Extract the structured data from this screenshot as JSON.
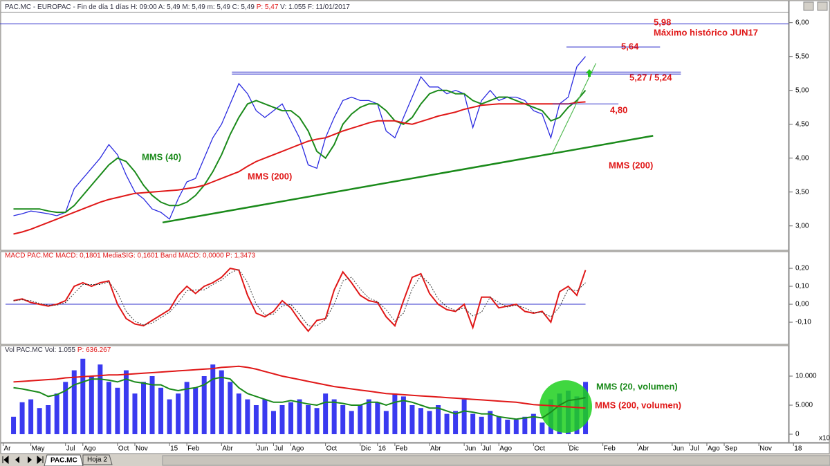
{
  "chart_data": [
    {
      "type": "line",
      "title": "PAC.MC - EUROPAC - Fin de día 1 días H: 09:00 A: 5,49 M: 5,49 m: 5,49 C: 5,49",
      "title_highlight": "P: 5,47",
      "title_tail": "V: 1.055 F: 11/01/2017",
      "x": [
        0,
        0.5,
        1,
        1.5,
        2,
        2.5,
        3,
        3.5,
        4,
        4.5,
        5,
        5.5,
        6,
        6.5,
        7,
        7.5,
        8,
        8.5,
        9,
        9.5,
        10,
        10.5,
        11,
        11.5,
        12,
        12.5,
        13,
        13.5,
        14,
        14.5,
        15,
        15.5,
        16,
        16.5,
        17,
        17.5,
        18,
        18.5,
        19,
        19.5,
        20,
        20.5,
        21,
        21.5,
        22,
        22.5,
        23,
        23.5,
        24,
        24.5,
        25,
        25.5,
        26,
        26.5,
        27,
        27.5,
        28,
        28.5,
        29,
        29.5,
        30,
        30.5,
        31,
        31.5,
        32,
        32.5,
        33
      ],
      "series": [
        {
          "color": "#2a2ae0",
          "values": [
            3.15,
            3.18,
            3.22,
            3.2,
            3.18,
            3.15,
            3.2,
            3.55,
            3.7,
            3.85,
            4.0,
            4.2,
            4.05,
            3.75,
            3.5,
            3.4,
            3.25,
            3.2,
            3.1,
            3.4,
            3.65,
            3.7,
            4.0,
            4.3,
            4.5,
            4.8,
            5.1,
            4.95,
            4.7,
            4.6,
            4.7,
            4.8,
            4.55,
            4.3,
            3.9,
            3.85,
            4.3,
            4.6,
            4.85,
            4.9,
            4.85,
            4.85,
            4.8,
            4.4,
            4.3,
            4.6,
            4.9,
            5.2,
            5.05,
            5.05,
            4.95,
            5.0,
            4.95,
            4.45,
            4.85,
            5.0,
            4.85,
            4.9,
            4.9,
            4.85,
            4.7,
            4.65,
            4.3,
            4.8,
            4.9,
            5.35,
            5.5
          ]
        },
        {
          "name": "MMS (40)",
          "color": "#1a8a1a",
          "values": [
            3.25,
            3.25,
            3.25,
            3.25,
            3.22,
            3.2,
            3.2,
            3.3,
            3.45,
            3.6,
            3.75,
            3.9,
            4.0,
            3.95,
            3.8,
            3.6,
            3.45,
            3.35,
            3.3,
            3.3,
            3.35,
            3.45,
            3.6,
            3.8,
            4.05,
            4.35,
            4.6,
            4.8,
            4.85,
            4.8,
            4.75,
            4.7,
            4.7,
            4.6,
            4.4,
            4.1,
            4.0,
            4.2,
            4.5,
            4.65,
            4.75,
            4.8,
            4.8,
            4.7,
            4.55,
            4.5,
            4.6,
            4.8,
            4.95,
            5.0,
            5.0,
            4.95,
            4.95,
            4.85,
            4.8,
            4.85,
            4.9,
            4.9,
            4.85,
            4.8,
            4.75,
            4.7,
            4.55,
            4.6,
            4.75,
            4.85,
            5.0
          ]
        },
        {
          "name": "MMS (200)",
          "color": "#e01818",
          "values": [
            2.88,
            2.91,
            2.95,
            3.0,
            3.05,
            3.1,
            3.15,
            3.2,
            3.25,
            3.3,
            3.35,
            3.39,
            3.42,
            3.45,
            3.48,
            3.49,
            3.5,
            3.51,
            3.52,
            3.53,
            3.55,
            3.57,
            3.6,
            3.65,
            3.7,
            3.75,
            3.8,
            3.88,
            3.95,
            4.0,
            4.05,
            4.1,
            4.15,
            4.2,
            4.25,
            4.28,
            4.3,
            4.35,
            4.4,
            4.44,
            4.48,
            4.52,
            4.55,
            4.55,
            4.55,
            4.52,
            4.5,
            4.54,
            4.58,
            4.62,
            4.65,
            4.68,
            4.72,
            4.75,
            4.78,
            4.79,
            4.8,
            4.8,
            4.8,
            4.8,
            4.8,
            4.8,
            4.8,
            4.8,
            4.8,
            4.82,
            4.83
          ]
        }
      ],
      "levels": [
        {
          "values": [
            5.98
          ],
          "x": [
            -0.78,
            44.71
          ],
          "label": "5,98",
          "note": "Máximo histórico JUN17"
        },
        {
          "values": [
            5.64
          ],
          "x": [
            31.9,
            37.3
          ],
          "label": "5,64"
        },
        {
          "values": [
            5.27,
            5.24
          ],
          "x": [
            12.6,
            38.5
          ],
          "label": "5,27 / 5,24"
        },
        {
          "values": [
            4.8
          ],
          "x": [
            31.1,
            34.9
          ],
          "label": "4,80"
        }
      ],
      "level_color": "#3333cc",
      "label_color": "#e01818",
      "trendlines": [
        {
          "x": [
            8.6,
            36.9
          ],
          "values": [
            3.05,
            4.33
          ],
          "color": "#1a8a1a"
        },
        {
          "x": [
            31.1,
            33.6
          ],
          "values": [
            4.08,
            5.4
          ],
          "color": "#55bb55"
        }
      ],
      "ylim": [
        2.64,
        6.15
      ],
      "yticks": [
        {
          "value": 3,
          "label": "3,00"
        },
        {
          "value": 3.5,
          "label": "3,50"
        },
        {
          "value": 4,
          "label": "4,00"
        },
        {
          "value": 4.5,
          "label": "4,50"
        },
        {
          "value": 5,
          "label": "5,00"
        },
        {
          "value": 5.5,
          "label": "5,50"
        },
        {
          "value": 6,
          "label": "6,00"
        }
      ]
    },
    {
      "type": "line",
      "title": "MACD  PAC.MC MACD: 0,1801 MediaSIG: 0,1601 Band MACD: 0,0000 P: 1,3473",
      "x": [
        0,
        0.5,
        1,
        1.5,
        2,
        2.5,
        3,
        3.5,
        4,
        4.5,
        5,
        5.5,
        6,
        6.5,
        7,
        7.5,
        8,
        8.5,
        9,
        9.5,
        10,
        10.5,
        11,
        11.5,
        12,
        12.5,
        13,
        13.5,
        14,
        14.5,
        15,
        15.5,
        16,
        16.5,
        17,
        17.5,
        18,
        18.5,
        19,
        19.5,
        20,
        20.5,
        21,
        21.5,
        22,
        22.5,
        23,
        23.5,
        24,
        24.5,
        25,
        25.5,
        26,
        26.5,
        27,
        27.5,
        28,
        28.5,
        29,
        29.5,
        30,
        30.5,
        31,
        31.5,
        32,
        32.5,
        33
      ],
      "series": [
        {
          "color": "#e01818",
          "values": [
            0.02,
            0.03,
            0.01,
            0.0,
            -0.01,
            0.0,
            0.02,
            0.1,
            0.12,
            0.1,
            0.12,
            0.13,
            0.0,
            -0.08,
            -0.11,
            -0.12,
            -0.09,
            -0.06,
            -0.03,
            0.05,
            0.1,
            0.06,
            0.1,
            0.12,
            0.15,
            0.2,
            0.19,
            0.05,
            -0.05,
            -0.07,
            -0.04,
            0.02,
            -0.02,
            -0.09,
            -0.15,
            -0.09,
            -0.08,
            0.08,
            0.18,
            0.12,
            0.05,
            0.02,
            0.01,
            -0.07,
            -0.12,
            0.02,
            0.15,
            0.17,
            0.06,
            0.0,
            -0.03,
            -0.04,
            0.0,
            -0.13,
            0.04,
            0.04,
            -0.02,
            -0.01,
            0.0,
            -0.04,
            -0.05,
            -0.04,
            -0.1,
            0.07,
            0.1,
            0.05,
            0.19
          ]
        },
        {
          "color": "#333333",
          "dashed": true,
          "values": [
            0.02,
            0.025,
            0.02,
            0.005,
            -0.005,
            -0.005,
            0.01,
            0.06,
            0.11,
            0.11,
            0.11,
            0.125,
            0.065,
            -0.04,
            -0.095,
            -0.115,
            -0.105,
            -0.075,
            -0.045,
            0.01,
            0.075,
            0.08,
            0.08,
            0.11,
            0.135,
            0.175,
            0.195,
            0.12,
            0.0,
            -0.06,
            -0.055,
            -0.01,
            0.0,
            -0.055,
            -0.12,
            -0.12,
            -0.085,
            0.0,
            0.13,
            0.15,
            0.085,
            0.035,
            0.015,
            -0.03,
            -0.095,
            -0.05,
            0.085,
            0.16,
            0.115,
            0.03,
            -0.015,
            -0.035,
            -0.02,
            -0.065,
            -0.045,
            0.04,
            0.01,
            -0.015,
            -0.005,
            -0.02,
            -0.045,
            -0.045,
            -0.07,
            -0.015,
            0.085,
            0.075,
            0.12
          ]
        }
      ],
      "zero_line": true,
      "zero_color": "#3333cc",
      "ylim": [
        -0.223,
        0.285
      ],
      "yticks": [
        {
          "value": -0.1,
          "label": "-0,10"
        },
        {
          "value": 0,
          "label": "0,00"
        },
        {
          "value": 0.1,
          "label": "0,10"
        },
        {
          "value": 0.2,
          "label": "0,20"
        }
      ]
    },
    {
      "type": "bar",
      "title": "Vol  PAC.MC Vol: 1.055",
      "title_highlight": "P: 636.267",
      "x": [
        0,
        0.5,
        1,
        1.5,
        2,
        2.5,
        3,
        3.5,
        4,
        4.5,
        5,
        5.5,
        6,
        6.5,
        7,
        7.5,
        8,
        8.5,
        9,
        9.5,
        10,
        10.5,
        11,
        11.5,
        12,
        12.5,
        13,
        13.5,
        14,
        14.5,
        15,
        15.5,
        16,
        16.5,
        17,
        17.5,
        18,
        18.5,
        19,
        19.5,
        20,
        20.5,
        21,
        21.5,
        22,
        22.5,
        23,
        23.5,
        24,
        24.5,
        25,
        25.5,
        26,
        26.5,
        27,
        27.5,
        28,
        28.5,
        29,
        29.5,
        30,
        30.5,
        31,
        31.5,
        32,
        32.5,
        33
      ],
      "color": "#3a3af0",
      "values": [
        3000,
        5500,
        6000,
        4500,
        5000,
        7000,
        9000,
        11000,
        13000,
        10000,
        12000,
        9000,
        8000,
        11000,
        7000,
        9000,
        10000,
        8000,
        6000,
        7000,
        9000,
        8000,
        10000,
        12000,
        11000,
        9000,
        7000,
        6000,
        5000,
        6000,
        4000,
        5000,
        5500,
        6000,
        5000,
        4500,
        7000,
        6000,
        5000,
        4000,
        5000,
        6000,
        5500,
        4000,
        7000,
        6500,
        5000,
        4500,
        4000,
        5000,
        3500,
        4000,
        6000,
        3500,
        3000,
        4000,
        3000,
        2500,
        2500,
        3000,
        3500,
        2000,
        6000,
        7000,
        7500,
        6500,
        9000
      ],
      "series": [
        {
          "name": "MMS (20, volumen)",
          "color": "#1a8a1a",
          "values": [
            8000,
            7800,
            7500,
            7200,
            6500,
            6800,
            7500,
            8500,
            9000,
            9500,
            9500,
            9300,
            9000,
            9500,
            9000,
            8800,
            8500,
            8500,
            7800,
            7500,
            7800,
            8000,
            8500,
            9500,
            9800,
            9500,
            8000,
            7000,
            6500,
            6000,
            5500,
            5500,
            5800,
            5500,
            5200,
            5000,
            5500,
            5500,
            5300,
            5000,
            5000,
            5500,
            5500,
            5000,
            5500,
            5800,
            5500,
            5000,
            4500,
            4500,
            4000,
            3500,
            4000,
            3800,
            3500,
            3500,
            3000,
            2800,
            2600,
            2800,
            3000,
            2800,
            3800,
            5000,
            5800,
            6000,
            6300
          ]
        },
        {
          "name": "MMS (200, volumen)",
          "color": "#e01818",
          "values": [
            9000,
            9100,
            9200,
            9300,
            9400,
            9500,
            9700,
            9800,
            9900,
            10000,
            10100,
            10200,
            10200,
            10300,
            10400,
            10500,
            10600,
            10700,
            10800,
            10900,
            11000,
            11100,
            11200,
            11300,
            11500,
            11600,
            11700,
            11500,
            11200,
            10800,
            10400,
            10000,
            9700,
            9400,
            9100,
            8800,
            8500,
            8200,
            8000,
            7800,
            7600,
            7400,
            7200,
            7000,
            6900,
            6800,
            6700,
            6600,
            6500,
            6400,
            6300,
            6200,
            6100,
            6000,
            5900,
            5800,
            5700,
            5600,
            5500,
            5300,
            5100,
            5000,
            4900,
            4800,
            4700,
            4600,
            4500
          ]
        }
      ],
      "ylim": [
        -1430,
        15000
      ],
      "yticks": [
        0,
        {
          "value": 5000,
          "label": "5.000"
        },
        {
          "value": 10000,
          "label": "10.000"
        }
      ]
    }
  ],
  "x_axis": {
    "xlim": [
      -0.78,
      44.71
    ],
    "xticks": [
      {
        "value": -0.6,
        "label": "Ar"
      },
      {
        "value": 1,
        "label": "May"
      },
      {
        "value": 3,
        "label": "Jul"
      },
      {
        "value": 4,
        "label": "Ago"
      },
      {
        "value": 6,
        "label": "Oct"
      },
      {
        "value": 7,
        "label": "Nov"
      },
      {
        "value": 9,
        "label": "15"
      },
      {
        "value": 10,
        "label": "Feb"
      },
      {
        "value": 12,
        "label": "Abr"
      },
      {
        "value": 14,
        "label": "Jun"
      },
      {
        "value": 15,
        "label": "Jul"
      },
      {
        "value": 16,
        "label": "Ago"
      },
      {
        "value": 18,
        "label": "Oct"
      },
      {
        "value": 20,
        "label": "Dic"
      },
      {
        "value": 21,
        "label": "16"
      },
      {
        "value": 22,
        "label": "Feb"
      },
      {
        "value": 24,
        "label": "Abr"
      },
      {
        "value": 26,
        "label": "Jun"
      },
      {
        "value": 27,
        "label": "Jul"
      },
      {
        "value": 28,
        "label": "Ago"
      },
      {
        "value": 30,
        "label": "Oct"
      },
      {
        "value": 32,
        "label": "Dic"
      },
      {
        "value": 34,
        "label": "Feb"
      },
      {
        "value": 36,
        "label": "Abr"
      },
      {
        "value": 38,
        "label": "Jun"
      },
      {
        "value": 39,
        "label": "Jul"
      },
      {
        "value": 40,
        "label": "Ago"
      },
      {
        "value": 41,
        "label": "Sep"
      },
      {
        "value": 43,
        "label": "Nov"
      },
      {
        "value": 45,
        "label": "18"
      }
    ]
  },
  "tabs": [
    "PAC.MC",
    "Hoja 2"
  ],
  "scale_note": "x10"
}
